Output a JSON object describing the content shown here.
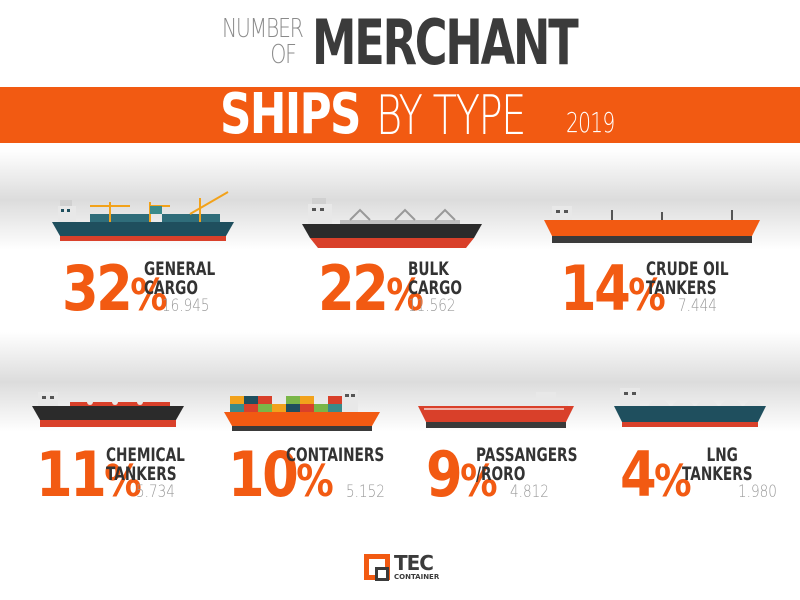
{
  "header": {
    "title_small_line1": "NUMBER",
    "title_small_line2": "OF",
    "title_big": "MERCHANT",
    "band_ships": "SHIPS",
    "band_bytype": "BY TYPE",
    "band_year": "2019"
  },
  "items": [
    {
      "pct": "32",
      "sign": "%",
      "label1": "GENERAL",
      "label2": "CARGO",
      "count": "16.945",
      "icon": "general-cargo-ship-icon"
    },
    {
      "pct": "22",
      "sign": "%",
      "label1": "BULK",
      "label2": "CARGO",
      "count": "11.562",
      "icon": "bulk-cargo-ship-icon"
    },
    {
      "pct": "14",
      "sign": "%",
      "label1": "CRUDE OIL",
      "label2": "TANKERS",
      "count": "7.444",
      "icon": "crude-oil-tanker-icon"
    },
    {
      "pct": "11",
      "sign": "%",
      "label1": "CHEMICAL",
      "label2": "TANKERS",
      "count": "5.734",
      "icon": "chemical-tanker-icon"
    },
    {
      "pct": "10",
      "sign": "%",
      "label1": "CONTAINERS",
      "label2": "",
      "count": "5.152",
      "icon": "container-ship-icon"
    },
    {
      "pct": "9",
      "sign": "%",
      "label1": "PASSANGERS",
      "label2": "/RORO",
      "count": "4.812",
      "icon": "passenger-roro-ship-icon"
    },
    {
      "pct": "4",
      "sign": "%",
      "label1": "LNG",
      "label2": "TANKERS",
      "count": "1.980",
      "icon": "lng-tanker-icon"
    }
  ],
  "logo": {
    "name": "TEC",
    "sub": "CONTAINER",
    "icon": "tec-container-logo-icon"
  },
  "colors": {
    "accent": "#f25a12",
    "dark": "#3b3b3b",
    "hull_blue": "#1f4f5e",
    "hull_red": "#d9402a",
    "hull_dark": "#2b2b2b"
  }
}
